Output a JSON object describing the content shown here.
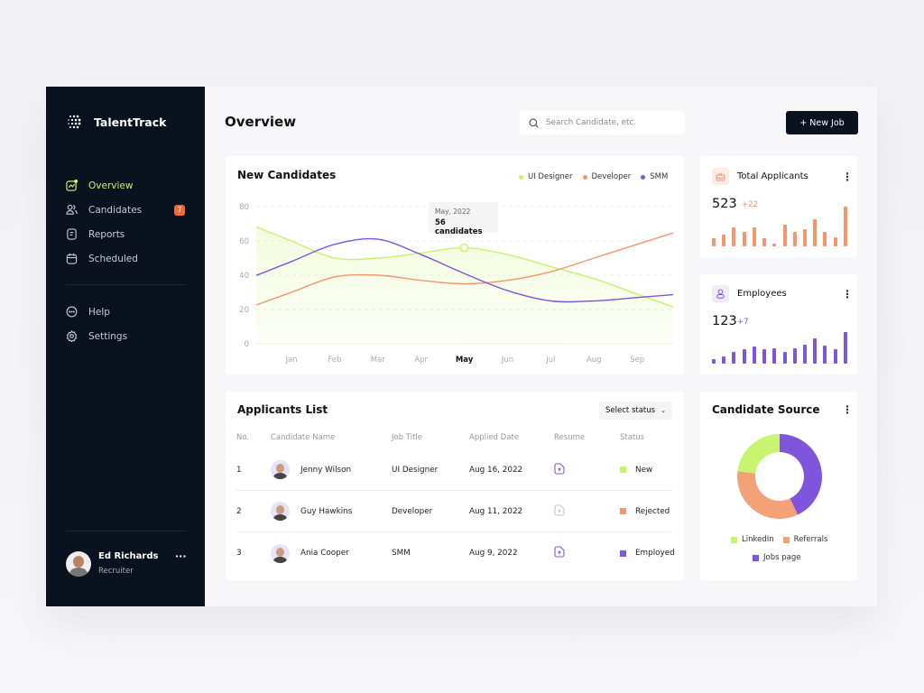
{
  "app": {
    "name": "TalentTrack"
  },
  "sidebar": {
    "items": [
      {
        "label": "Overview",
        "icon": "chart-icon",
        "active": true
      },
      {
        "label": "Candidates",
        "icon": "users-icon",
        "badge": "7"
      },
      {
        "label": "Reports",
        "icon": "report-icon"
      },
      {
        "label": "Scheduled",
        "icon": "calendar-icon"
      }
    ],
    "secondary": [
      {
        "label": "Help",
        "icon": "chat-icon"
      },
      {
        "label": "Settings",
        "icon": "gear-icon"
      }
    ],
    "user": {
      "name": "Ed Richards",
      "role": "Recruiter",
      "menu": "···"
    }
  },
  "header": {
    "title": "Overview",
    "search_placeholder": "Search Candidate, etc.",
    "new_job": "+ New Job"
  },
  "colors": {
    "green": "#c6f26a",
    "orange": "#f4956a",
    "purple": "#7f55dc",
    "dark": "#0a1220"
  },
  "chart_data": {
    "type": "line",
    "title": "New Candidates",
    "categories": [
      "Jan",
      "Feb",
      "Mar",
      "Apr",
      "May",
      "Jun",
      "Jul",
      "Aug",
      "Sep"
    ],
    "highlight_category": "May",
    "ylim": [
      0,
      80
    ],
    "yticks": [
      "80",
      "60",
      "40",
      "20",
      "0"
    ],
    "grid": true,
    "legend": "top-right",
    "series": [
      {
        "name": "UI Designer",
        "color": "#c6f26a",
        "values": [
          60,
          50,
          50,
          53,
          56,
          52,
          45,
          38,
          29
        ],
        "filled": true
      },
      {
        "name": "Developer",
        "color": "#f4956a",
        "values": [
          30,
          39,
          40,
          37,
          35,
          37,
          42,
          50,
          58
        ]
      },
      {
        "name": "SMM",
        "color": "#7f55dc",
        "values": [
          48,
          58,
          61,
          52,
          41,
          31,
          25,
          25,
          27
        ]
      }
    ],
    "tooltip": {
      "date": "May, 2022",
      "value": "56 candidates"
    }
  },
  "stats": [
    {
      "title": "Total Applicants",
      "value": "523",
      "delta": "+22",
      "color": "#f4956a",
      "icon": "inbox-icon",
      "bars": [
        8,
        12,
        20,
        15,
        20,
        8,
        3,
        22,
        15,
        18,
        28,
        15,
        9,
        41
      ]
    },
    {
      "title": "Employees",
      "value": "123",
      "delta": "+7",
      "color": "#7f55dc",
      "icon": "user-icon",
      "bars": [
        5,
        8,
        12,
        15,
        18,
        15,
        16,
        12,
        16,
        20,
        26,
        19,
        15,
        33
      ]
    }
  ],
  "applicants": {
    "title": "Applicants List",
    "filter": "Select status",
    "columns": [
      "No.",
      "Candidate Name",
      "Job Title",
      "Applied Date",
      "Resume",
      "Status"
    ],
    "rows": [
      {
        "no": "1",
        "name": "Jenny Wilson",
        "job": "UI Designer",
        "date": "Aug 16, 2022",
        "resume": true,
        "status": "New",
        "status_color": "#c6f26a"
      },
      {
        "no": "2",
        "name": "Guy Hawkins",
        "job": "Developer",
        "date": "Aug 11, 2022",
        "resume": false,
        "status": "Rejected",
        "status_color": "#f4956a"
      },
      {
        "no": "3",
        "name": "Ania Cooper",
        "job": "SMM",
        "date": "Aug 9, 2022",
        "resume": true,
        "status": "Employed",
        "status_color": "#7f55dc"
      }
    ]
  },
  "source": {
    "title": "Candidate Source",
    "slices": [
      {
        "name": "Jobs page",
        "value": 43,
        "color": "#7f55dc"
      },
      {
        "name": "Referrals",
        "value": 34,
        "color": "#f4a178"
      },
      {
        "name": "LinkedIn",
        "value": 23,
        "color": "#c9f46f"
      }
    ]
  }
}
